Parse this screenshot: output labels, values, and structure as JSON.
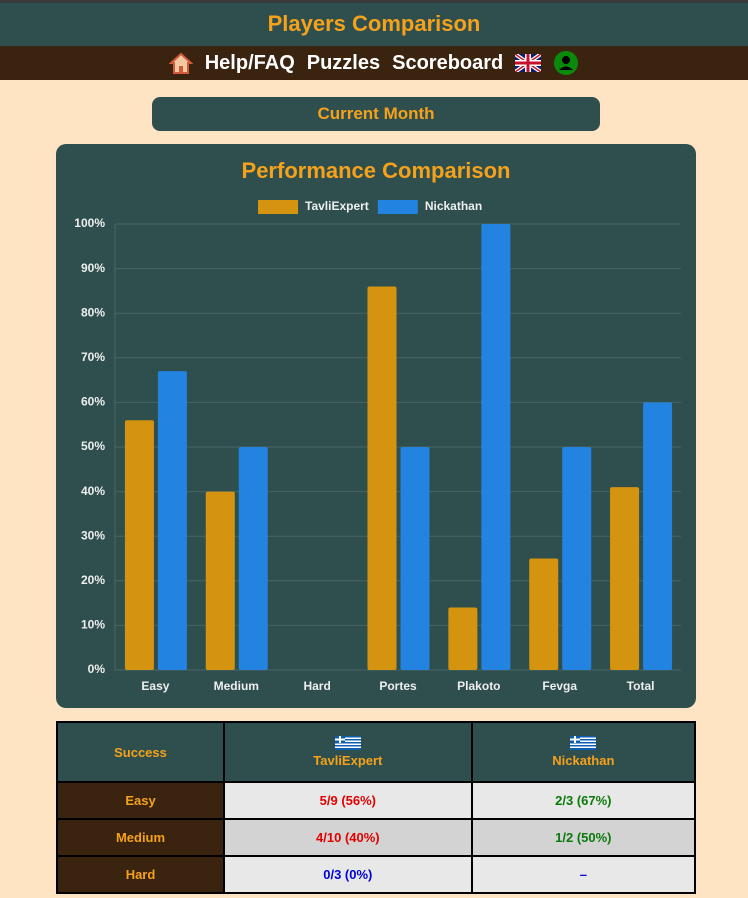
{
  "header": {
    "title": "Players Comparison"
  },
  "nav": {
    "items": [
      "Help/FAQ",
      "Puzzles",
      "Scoreboard"
    ]
  },
  "period": {
    "label": "Current Month"
  },
  "chart_data": {
    "type": "bar",
    "title": "Performance Comparison",
    "categories": [
      "Easy",
      "Medium",
      "Hard",
      "Portes",
      "Plakoto",
      "Fevga",
      "Total"
    ],
    "series": [
      {
        "name": "TavliExpert",
        "color": "#d4940f",
        "values": [
          56,
          40,
          0,
          86,
          14,
          25,
          41
        ]
      },
      {
        "name": "Nickathan",
        "color": "#2383e0",
        "values": [
          67,
          50,
          null,
          50,
          100,
          50,
          60
        ]
      }
    ],
    "ylim": [
      0,
      100
    ],
    "yticks": [
      {
        "value": 0,
        "label": "0%"
      },
      {
        "value": 10,
        "label": "10%"
      },
      {
        "value": 20,
        "label": "20%"
      },
      {
        "value": 30,
        "label": "30%"
      },
      {
        "value": 40,
        "label": "40%"
      },
      {
        "value": 50,
        "label": "50%"
      },
      {
        "value": 60,
        "label": "60%"
      },
      {
        "value": 70,
        "label": "70%"
      },
      {
        "value": 80,
        "label": "80%"
      },
      {
        "value": 90,
        "label": "90%"
      },
      {
        "value": 100,
        "label": "100%"
      }
    ],
    "grid": true,
    "legend": "top"
  },
  "table": {
    "header": [
      "Success",
      "TavliExpert",
      "Nickathan"
    ],
    "rows": [
      [
        "Easy",
        "5/9 (56%)",
        "2/3 (67%)"
      ],
      [
        "Medium",
        "4/10 (40%)",
        "1/2 (50%)"
      ],
      [
        "Hard",
        "0/3 (0%)",
        "–"
      ]
    ]
  }
}
